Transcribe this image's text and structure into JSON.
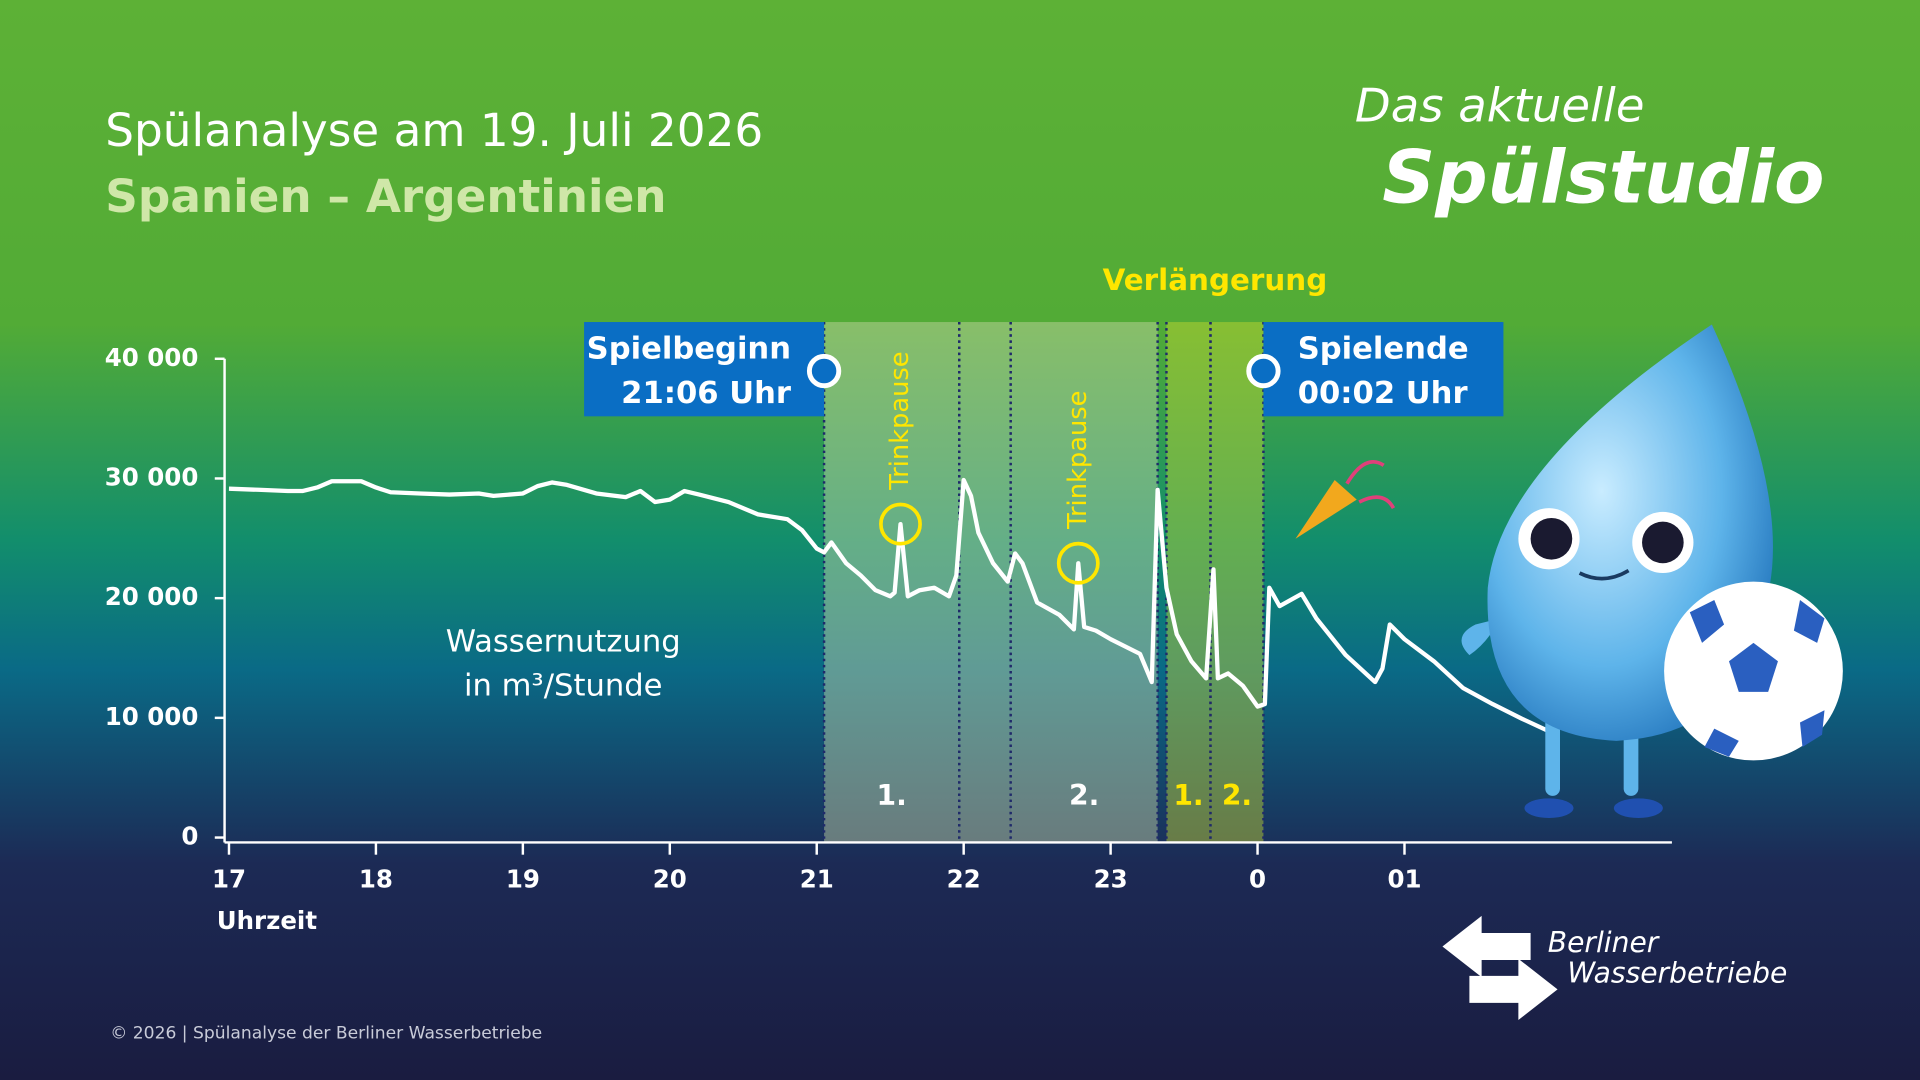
{
  "brand": [
    "Das aktuelle",
    "Spülstudio"
  ],
  "footer": "© 2026 | Spülanalyse der Berliner Wasserbetriebe",
  "logo": [
    "Berliner",
    "Wasserbetriebe"
  ],
  "chart_data": {
    "type": "line",
    "title": "Spülanalyse am 19. Juli 2026",
    "subtitle": "Spanien – Argentinien",
    "y_label": [
      "Wassernutzung",
      "in m³/Stunde"
    ],
    "x_label": "Uhrzeit",
    "xlim": [
      16.97,
      26.82
    ],
    "xticks": [
      17,
      18,
      19,
      20,
      21,
      22,
      23,
      {
        "value": 24,
        "label": "0"
      },
      {
        "value": 25,
        "label": "01"
      }
    ],
    "ylim": [
      0,
      40000
    ],
    "yticks": [
      0,
      {
        "value": 10000,
        "label": "10 000"
      },
      {
        "value": 20000,
        "label": "20 000"
      },
      {
        "value": 30000,
        "label": "30 000"
      },
      {
        "value": 40000,
        "label": "40 000"
      }
    ],
    "series": [
      {
        "color": "#ffffff",
        "x": [
          17.0,
          17.2,
          17.4,
          17.5,
          17.6,
          17.7,
          17.9,
          18.0,
          18.1,
          18.3,
          18.5,
          18.7,
          18.8,
          19.0,
          19.1,
          19.2,
          19.3,
          19.5,
          19.7,
          19.8,
          19.9,
          20.0,
          20.1,
          20.2,
          20.4,
          20.6,
          20.8,
          20.9,
          21.0,
          21.05,
          21.1,
          21.2,
          21.3,
          21.4,
          21.5,
          21.53,
          21.57,
          21.62,
          21.7,
          21.8,
          21.9,
          21.95,
          22.0,
          22.05,
          22.1,
          22.2,
          22.3,
          22.35,
          22.4,
          22.5,
          22.65,
          22.75,
          22.78,
          22.82,
          22.9,
          23.0,
          23.2,
          23.28,
          23.32,
          23.38,
          23.45,
          23.55,
          23.65,
          23.7,
          23.73,
          23.8,
          23.9,
          24.0,
          24.05,
          24.08,
          24.15,
          24.3,
          24.4,
          24.6,
          24.8,
          24.85,
          24.9,
          25.0,
          25.2,
          25.4,
          25.6,
          25.8,
          25.98
        ],
        "values": [
          29150,
          29050,
          28950,
          28950,
          29250,
          29770,
          29770,
          29250,
          28850,
          28750,
          28650,
          28750,
          28540,
          28750,
          29360,
          29670,
          29460,
          28750,
          28440,
          28950,
          28030,
          28240,
          28950,
          28650,
          28030,
          27000,
          26600,
          25680,
          24140,
          23830,
          24650,
          22920,
          21890,
          20660,
          20150,
          20460,
          26190,
          20150,
          20660,
          20870,
          20150,
          21890,
          29870,
          28540,
          25470,
          22920,
          21380,
          23730,
          22920,
          19640,
          18620,
          17390,
          22920,
          17600,
          17290,
          16570,
          15350,
          12990,
          29050,
          20870,
          16980,
          14730,
          13300,
          22400,
          13300,
          13710,
          12690,
          10950,
          11150,
          20870,
          19340,
          20360,
          18310,
          15240,
          12990,
          14120,
          17800,
          16570,
          14730,
          12480,
          11150,
          9920,
          8900
        ]
      }
    ],
    "periods": [
      {
        "label": "1.",
        "start": 21.05,
        "end": 21.97,
        "color": "#c9d8a8",
        "label_color": "#ffffff"
      },
      {
        "start": 21.97,
        "end": 22.32,
        "color": "#c9d8a8"
      },
      {
        "label": "2.",
        "start": 22.32,
        "end": 23.32,
        "color": "#c9d8a8",
        "label_color": "#ffffff"
      },
      {
        "label": "1.",
        "start": 23.38,
        "end": 23.68,
        "color": "#c8d630",
        "label_color": "#ffe600"
      },
      {
        "label": "2.",
        "start": 23.68,
        "end": 24.04,
        "color": "#c8d630",
        "label_color": "#ffe600"
      }
    ],
    "extra_time_label": "Verlängerung",
    "drink_breaks": [
      {
        "label": "Trinkpause",
        "x": 21.57,
        "y": 26190
      },
      {
        "label": "Trinkpause",
        "x": 22.78,
        "y": 22920
      }
    ],
    "kickoff": {
      "label": [
        "Spielbeginn",
        "21:06 Uhr"
      ],
      "x": 21.05
    },
    "final_whistle": {
      "label": [
        "Spielende",
        "00:02 Uhr"
      ],
      "x": 24.04
    }
  }
}
